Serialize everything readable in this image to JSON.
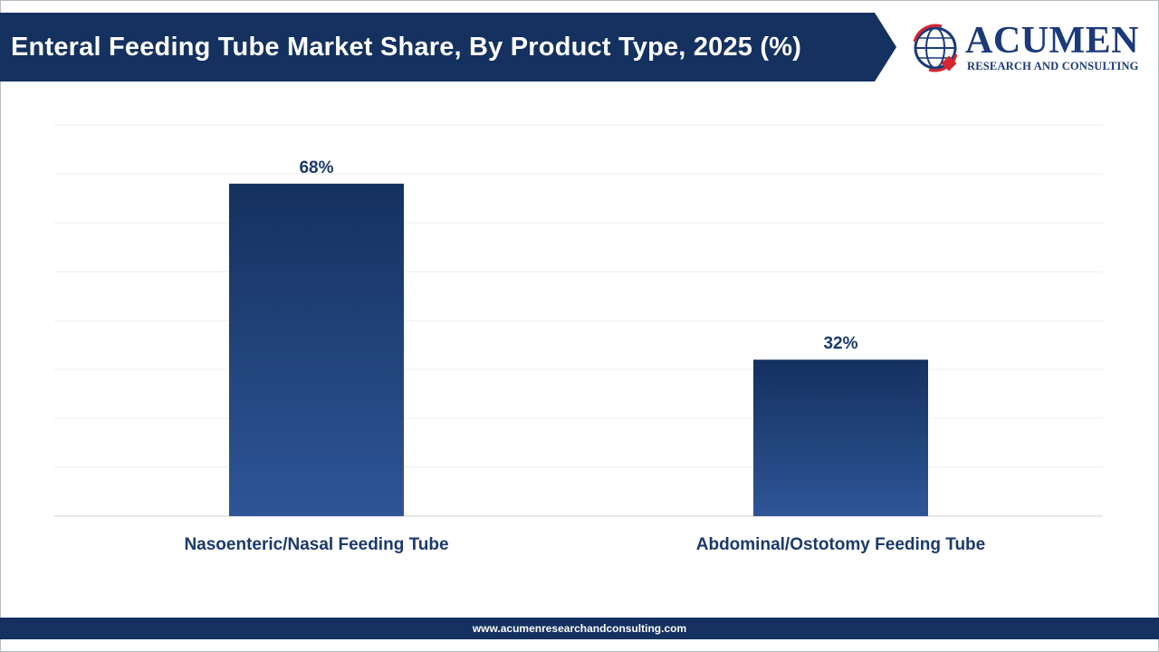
{
  "header": {
    "title": "Enteral Feeding Tube Market Share, By Product Type, 2025 (%)"
  },
  "logo": {
    "name": "ACUMEN",
    "subtitle": "RESEARCH AND CONSULTING",
    "mark_icon": "globe-icon"
  },
  "colors": {
    "banner": "#14315f",
    "bar_top": "#14315f",
    "bar_bottom": "#2f5597",
    "label": "#1b3a6b",
    "logo_red": "#d7262e"
  },
  "chart_data": {
    "type": "bar",
    "categories": [
      "Nasoenteric/Nasal Feeding Tube",
      "Abdominal/Ostotomy Feeding Tube"
    ],
    "values": [
      68,
      32
    ],
    "data_labels": [
      "68%",
      "32%"
    ],
    "title": "Enteral Feeding Tube Market Share, By Product Type, 2025 (%)",
    "xlabel": "",
    "ylabel": "",
    "ylim": [
      0,
      80
    ],
    "grid": true,
    "legend": "none"
  },
  "footer": {
    "url": "www.acumenresearchandconsulting.com"
  }
}
